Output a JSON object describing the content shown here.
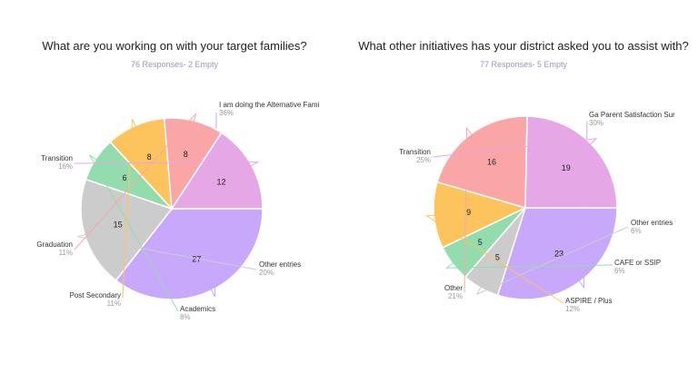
{
  "chart_data": [
    {
      "type": "pie",
      "title": "What are you working on with your target families?",
      "subtitle": "76 Responses- 2 Empty",
      "slices": [
        {
          "label": "I am doing the Alternative Fami",
          "value": 27,
          "percent": "36%",
          "color": "#c7a8fb"
        },
        {
          "label": "Other entries",
          "value": 15,
          "percent": "20%",
          "color": "#cccccc"
        },
        {
          "label": "Academics",
          "value": 6,
          "percent": "8%",
          "color": "#93dcae"
        },
        {
          "label": "Post Secondary",
          "value": 8,
          "percent": "11%",
          "color": "#fdc35c"
        },
        {
          "label": "Graduation",
          "value": 8,
          "percent": "11%",
          "color": "#fba6a6"
        },
        {
          "label": "Transition",
          "value": 12,
          "percent": "16%",
          "color": "#e6a7e6"
        }
      ]
    },
    {
      "type": "pie",
      "title": "What other initiatives has your district asked you to assist with?",
      "subtitle": "77 Responses- 5 Empty",
      "slices": [
        {
          "label": "Ga Parent Satisfaction Sur",
          "value": 23,
          "percent": "30%",
          "color": "#c7a8fb"
        },
        {
          "label": "Other entries",
          "value": 5,
          "percent": "6%",
          "color": "#cccccc"
        },
        {
          "label": "CAFE or SSIP",
          "value": 5,
          "percent": "6%",
          "color": "#93dcae"
        },
        {
          "label": "ASPIRE / Plus",
          "value": 9,
          "percent": "12%",
          "color": "#fdc35c"
        },
        {
          "label": "Other",
          "value": 16,
          "percent": "21%",
          "color": "#fba6a6"
        },
        {
          "label": "Transition",
          "value": 19,
          "percent": "25%",
          "color": "#e6a7e6"
        }
      ]
    }
  ]
}
